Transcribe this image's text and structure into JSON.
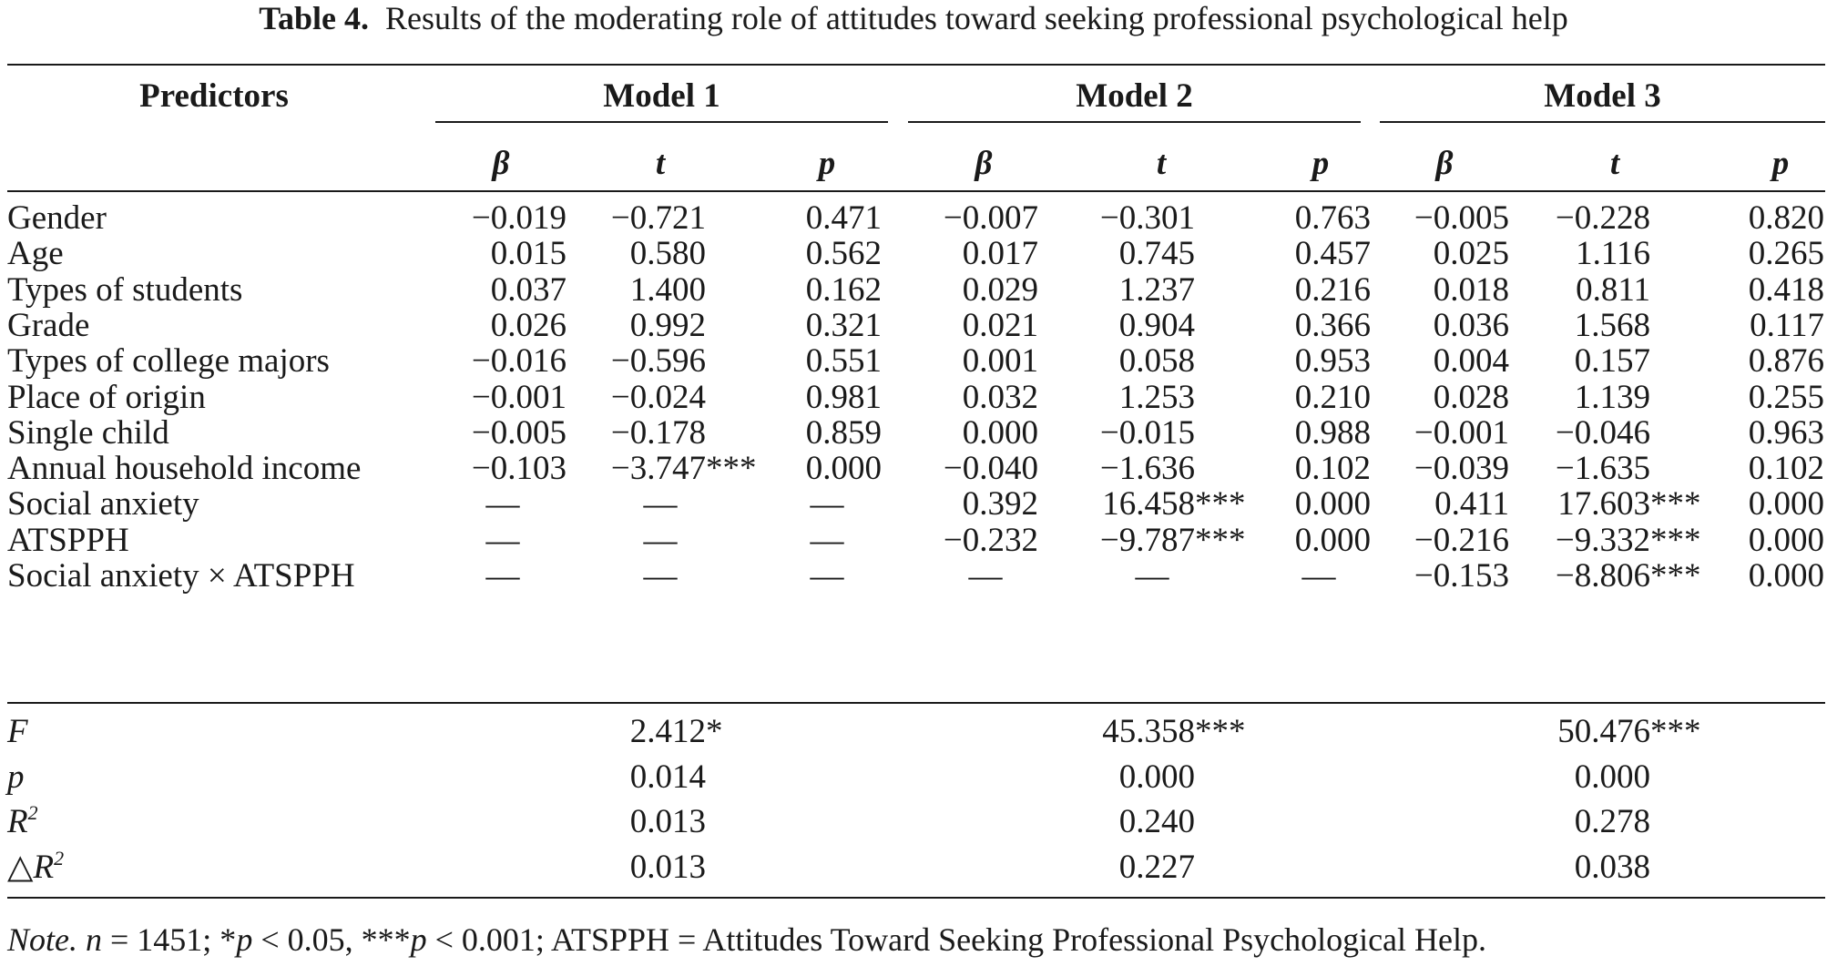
{
  "caption": {
    "label": "Table 4.",
    "title": "Results of the moderating role of attitudes toward seeking professional psychological help"
  },
  "header": {
    "predictors": "Predictors",
    "models": [
      "Model 1",
      "Model 2",
      "Model 3"
    ],
    "beta": "β",
    "t": "t",
    "p": "p"
  },
  "rows": [
    {
      "label": "Gender",
      "m1": [
        "−0.019",
        "−0.721",
        "0.471"
      ],
      "m2": [
        "−0.007",
        "−0.301",
        "0.763"
      ],
      "m3": [
        "−0.005",
        "−0.228",
        "0.820"
      ]
    },
    {
      "label": "Age",
      "m1": [
        "0.015",
        "0.580",
        "0.562"
      ],
      "m2": [
        "0.017",
        "0.745",
        "0.457"
      ],
      "m3": [
        "0.025",
        "1.116",
        "0.265"
      ]
    },
    {
      "label": "Types of students",
      "m1": [
        "0.037",
        "1.400",
        "0.162"
      ],
      "m2": [
        "0.029",
        "1.237",
        "0.216"
      ],
      "m3": [
        "0.018",
        "0.811",
        "0.418"
      ]
    },
    {
      "label": "Grade",
      "m1": [
        "0.026",
        "0.992",
        "0.321"
      ],
      "m2": [
        "0.021",
        "0.904",
        "0.366"
      ],
      "m3": [
        "0.036",
        "1.568",
        "0.117"
      ]
    },
    {
      "label": "Types of college majors",
      "m1": [
        "−0.016",
        "−0.596",
        "0.551"
      ],
      "m2": [
        "0.001",
        "0.058",
        "0.953"
      ],
      "m3": [
        "0.004",
        "0.157",
        "0.876"
      ]
    },
    {
      "label": "Place of origin",
      "m1": [
        "−0.001",
        "−0.024",
        "0.981"
      ],
      "m2": [
        "0.032",
        "1.253",
        "0.210"
      ],
      "m3": [
        "0.028",
        "1.139",
        "0.255"
      ]
    },
    {
      "label": "Single child",
      "m1": [
        "−0.005",
        "−0.178",
        "0.859"
      ],
      "m2": [
        "0.000",
        "−0.015",
        "0.988"
      ],
      "m3": [
        "−0.001",
        "−0.046",
        "0.963"
      ]
    },
    {
      "label": "Annual household income",
      "m1": [
        "−0.103",
        "−3.747***",
        "0.000"
      ],
      "m2": [
        "−0.040",
        "−1.636",
        "0.102"
      ],
      "m3": [
        "−0.039",
        "−1.635",
        "0.102"
      ]
    },
    {
      "label": "Social anxiety",
      "m1": [
        "—",
        "—",
        "—"
      ],
      "m2": [
        "0.392",
        "16.458***",
        "0.000"
      ],
      "m3": [
        "0.411",
        "17.603***",
        "0.000"
      ]
    },
    {
      "label": "ATSPPH",
      "m1": [
        "—",
        "—",
        "—"
      ],
      "m2": [
        "−0.232",
        "−9.787***",
        "0.000"
      ],
      "m3": [
        "−0.216",
        "−9.332***",
        "0.000"
      ]
    },
    {
      "label": "Social anxiety × ATSPPH",
      "m1": [
        "—",
        "—",
        "—"
      ],
      "m2": [
        "—",
        "—",
        "—"
      ],
      "m3": [
        "−0.153",
        "−8.806***",
        "0.000"
      ]
    }
  ],
  "summary": [
    {
      "label": "F",
      "values": [
        "2.412*",
        "45.358***",
        "50.476***"
      ]
    },
    {
      "label": "p",
      "values": [
        "0.014",
        "0.000",
        "0.000"
      ]
    },
    {
      "label": "R",
      "sup": "2",
      "values": [
        "0.013",
        "0.240",
        "0.278"
      ]
    },
    {
      "label": "△R",
      "sup": "2",
      "values": [
        "0.013",
        "0.227",
        "0.038"
      ]
    }
  ],
  "note": {
    "prefix": "Note.",
    "text_n": "n",
    "text_1": " = 1451; *",
    "text_p1": "p",
    "text_2": " < 0.05, ***",
    "text_p2": "p",
    "text_3": " < 0.001; ATSPPH = Attitudes Toward Seeking Professional Psychological Help."
  }
}
